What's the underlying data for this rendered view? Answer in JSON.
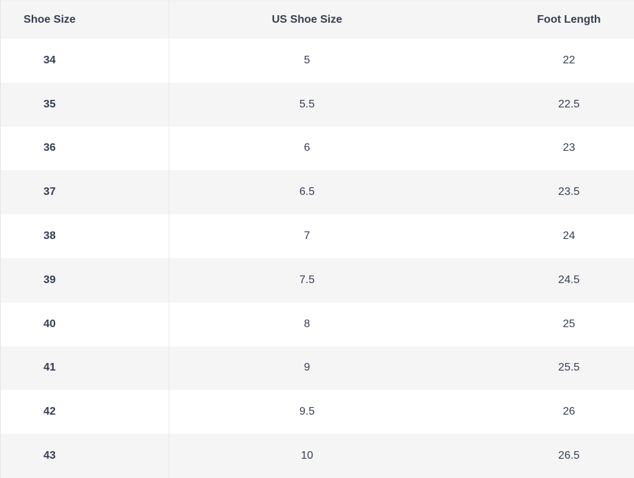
{
  "colors": {
    "text": "#373e4f",
    "stripe": "#f5f5f6",
    "header_bg": "#f5f5f6",
    "row_white": "#ffffff",
    "divider": "#e9e9e9",
    "edge": "#e3e3e3",
    "edge_soft": "#f0f0f0"
  },
  "table": {
    "columns": [
      {
        "label": "Shoe Size"
      },
      {
        "label": "US Shoe Size"
      },
      {
        "label": "Foot Length"
      }
    ],
    "rows": [
      [
        "34",
        "5",
        "22"
      ],
      [
        "35",
        "5.5",
        "22.5"
      ],
      [
        "36",
        "6",
        "23"
      ],
      [
        "37",
        "6.5",
        "23.5"
      ],
      [
        "38",
        "7",
        "24"
      ],
      [
        "39",
        "7.5",
        "24.5"
      ],
      [
        "40",
        "8",
        "25"
      ],
      [
        "41",
        "9",
        "25.5"
      ],
      [
        "42",
        "9.5",
        "26"
      ],
      [
        "43",
        "10",
        "26.5"
      ]
    ]
  }
}
